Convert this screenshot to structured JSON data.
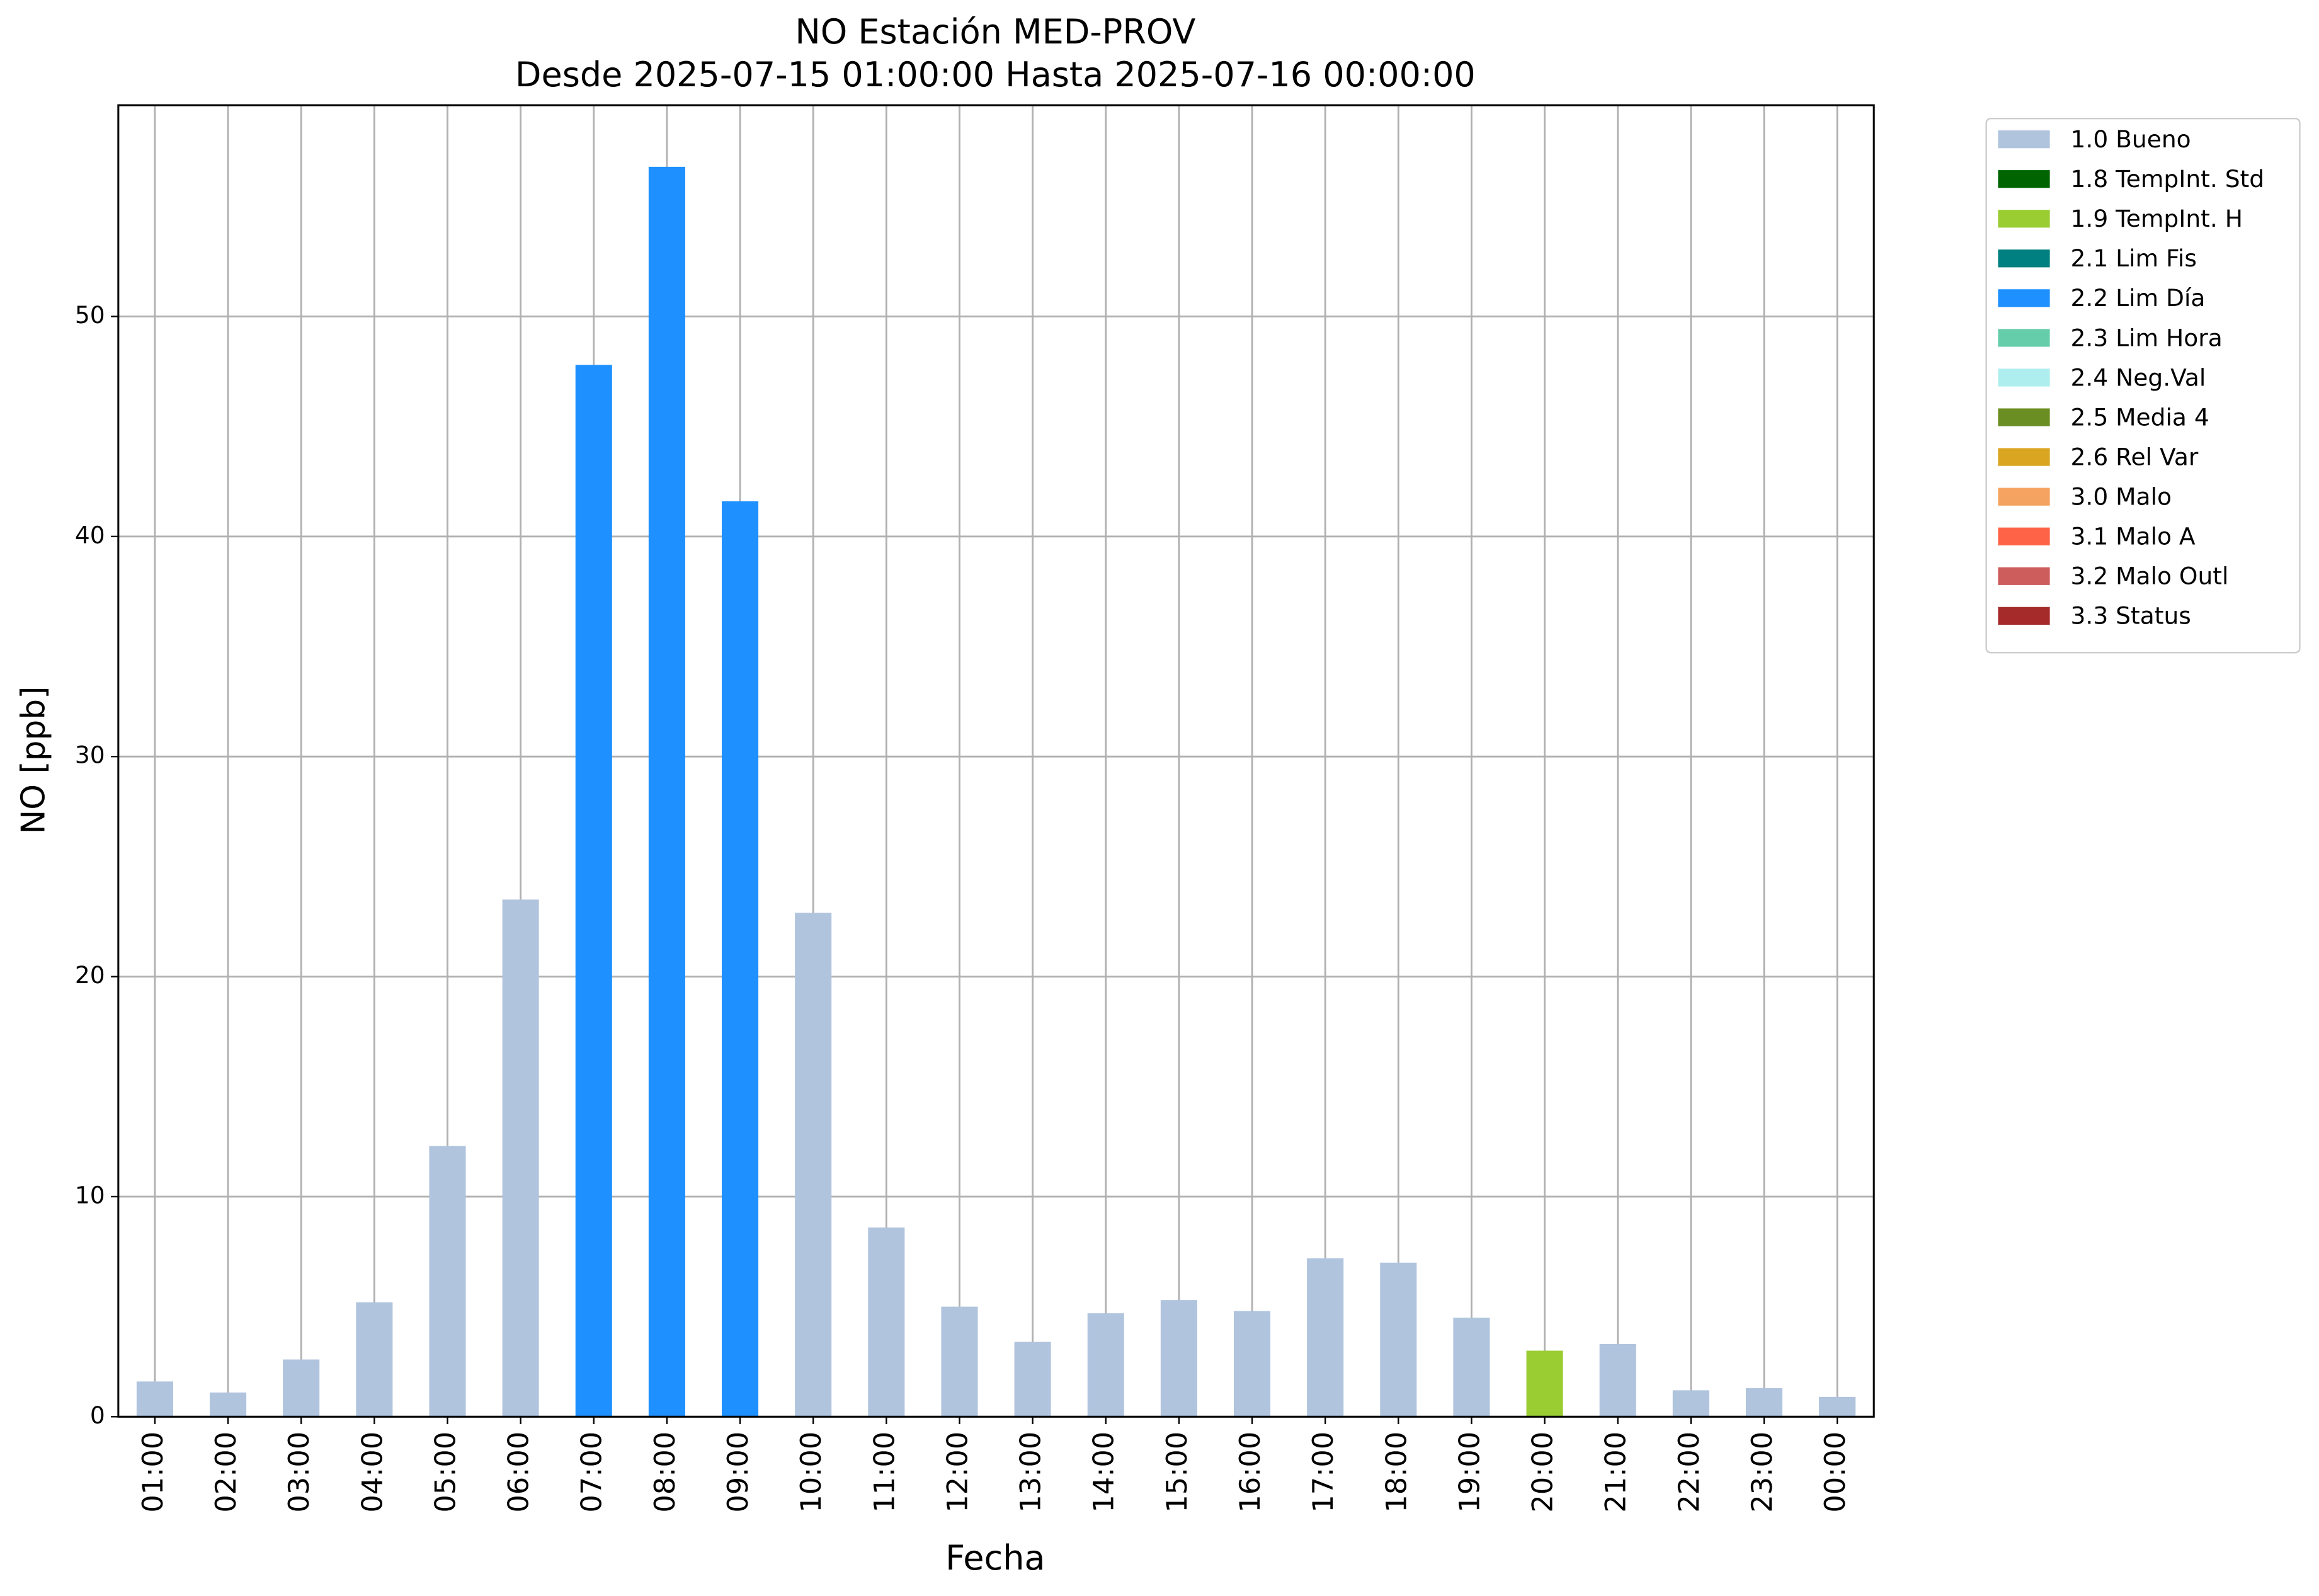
{
  "chart_data": {
    "type": "bar",
    "title": "NO Estación MED-PROV",
    "subtitle": "Desde 2025-07-15 01:00:00 Hasta 2025-07-16 00:00:00",
    "x_label": "Fecha",
    "y_label": "NO [ppb]",
    "categories": [
      "01:00",
      "02:00",
      "03:00",
      "04:00",
      "05:00",
      "06:00",
      "07:00",
      "08:00",
      "09:00",
      "10:00",
      "11:00",
      "12:00",
      "13:00",
      "14:00",
      "15:00",
      "16:00",
      "17:00",
      "18:00",
      "19:00",
      "20:00",
      "21:00",
      "22:00",
      "23:00",
      "00:00"
    ],
    "values": [
      1.6,
      1.1,
      2.6,
      5.2,
      12.3,
      23.5,
      47.8,
      56.8,
      41.6,
      22.9,
      8.6,
      5.0,
      3.4,
      4.7,
      5.3,
      4.8,
      7.2,
      7.0,
      4.5,
      3.0,
      3.3,
      1.2,
      1.3,
      0.9
    ],
    "colors": [
      "#b0c4de",
      "#b0c4de",
      "#b0c4de",
      "#b0c4de",
      "#b0c4de",
      "#b0c4de",
      "#1e90ff",
      "#1e90ff",
      "#1e90ff",
      "#b0c4de",
      "#b0c4de",
      "#b0c4de",
      "#b0c4de",
      "#b0c4de",
      "#b0c4de",
      "#b0c4de",
      "#b0c4de",
      "#b0c4de",
      "#b0c4de",
      "#9acd32",
      "#b0c4de",
      "#b0c4de",
      "#b0c4de",
      "#b0c4de"
    ],
    "ylim": [
      0,
      59.6
    ],
    "yticks": [
      0,
      10,
      20,
      30,
      40,
      50
    ],
    "grid": true,
    "legend_position": "outside-upper-right",
    "legend": [
      {
        "name": "1.0 Bueno",
        "color": "#b0c4de"
      },
      {
        "name": "1.8 TempInt. Std",
        "color": "#006400"
      },
      {
        "name": "1.9 TempInt. H",
        "color": "#9acd32"
      },
      {
        "name": "2.1 Lim Fis",
        "color": "#008080"
      },
      {
        "name": "2.2 Lim Día",
        "color": "#1e90ff"
      },
      {
        "name": "2.3 Lim Hora",
        "color": "#66cdaa"
      },
      {
        "name": "2.4 Neg.Val",
        "color": "#afeeee"
      },
      {
        "name": "2.5 Media 4",
        "color": "#6b8e23"
      },
      {
        "name": "2.6 Rel Var",
        "color": "#daa520"
      },
      {
        "name": "3.0 Malo",
        "color": "#f4a460"
      },
      {
        "name": "3.1 Malo A",
        "color": "#ff6347"
      },
      {
        "name": "3.2 Malo Outl",
        "color": "#cd5c5c"
      },
      {
        "name": "3.3 Status",
        "color": "#a52a2a"
      }
    ]
  }
}
